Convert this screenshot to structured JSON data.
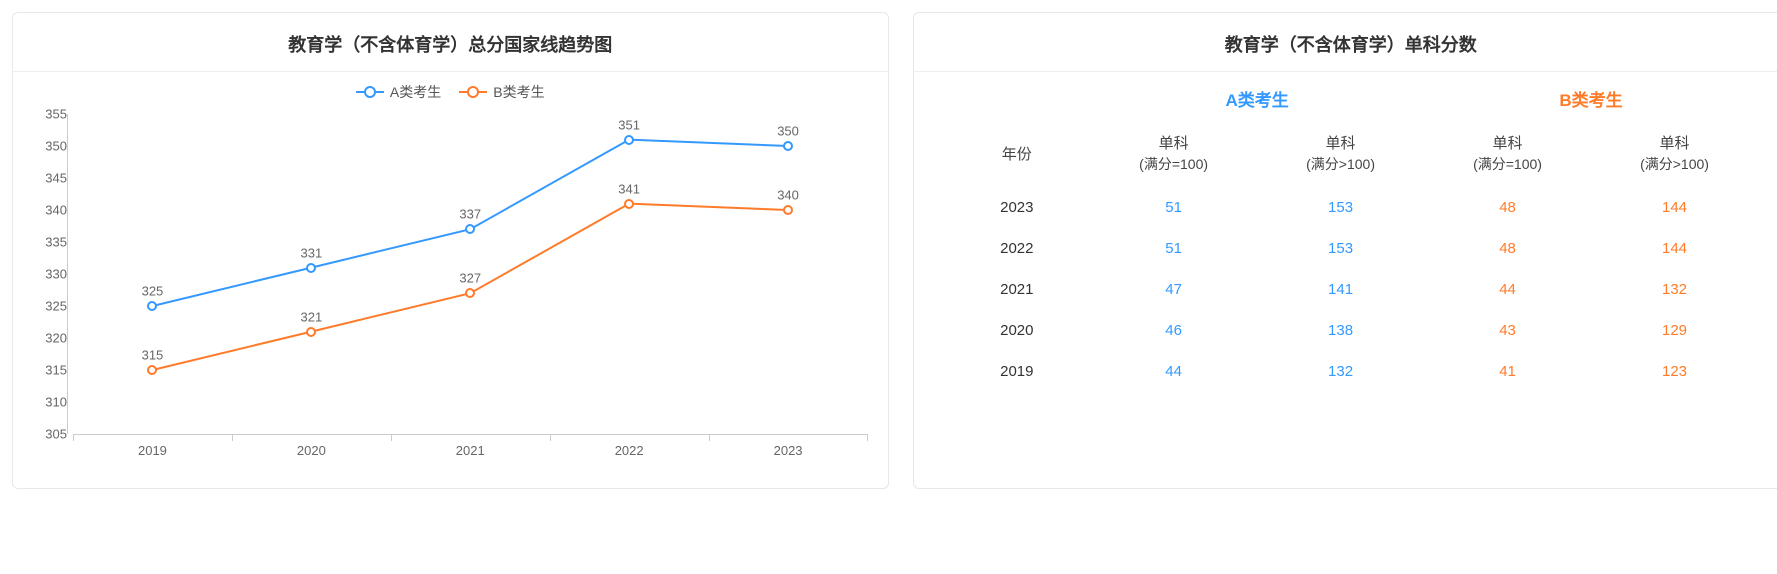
{
  "chart": {
    "title": "教育学（不含体育学）总分国家线趋势图",
    "type": "line",
    "legend": [
      {
        "label": "A类考生",
        "color": "#3399ff"
      },
      {
        "label": "B类考生",
        "color": "#ff7b29"
      }
    ],
    "x_categories": [
      "2019",
      "2020",
      "2021",
      "2022",
      "2023"
    ],
    "y_min": 305,
    "y_max": 355,
    "y_step": 5,
    "series": [
      {
        "name": "A类考生",
        "color": "#3399ff",
        "values": [
          325,
          331,
          337,
          351,
          350
        ]
      },
      {
        "name": "B类考生",
        "color": "#ff7b29",
        "values": [
          315,
          321,
          327,
          341,
          340
        ]
      }
    ],
    "marker_size": 10,
    "marker_border": 2,
    "line_width": 2,
    "label_fontsize": 13,
    "axis_fontsize": 13,
    "axis_color": "#666666",
    "grid_color": "#cccccc",
    "background_color": "#ffffff"
  },
  "table": {
    "title": "教育学（不含体育学）单科分数",
    "groups": [
      {
        "label": "A类考生",
        "color": "#3399ff"
      },
      {
        "label": "B类考生",
        "color": "#ff7b29"
      }
    ],
    "year_header": "年份",
    "sub_headers": [
      {
        "line1": "单科",
        "line2": "(满分=100)"
      },
      {
        "line1": "单科",
        "line2": "(满分>100)"
      },
      {
        "line1": "单科",
        "line2": "(满分=100)"
      },
      {
        "line1": "单科",
        "line2": "(满分>100)"
      }
    ],
    "rows": [
      {
        "year": "2023",
        "a100": "51",
        "a100p": "153",
        "b100": "48",
        "b100p": "144"
      },
      {
        "year": "2022",
        "a100": "51",
        "a100p": "153",
        "b100": "48",
        "b100p": "144"
      },
      {
        "year": "2021",
        "a100": "47",
        "a100p": "141",
        "b100": "44",
        "b100p": "132"
      },
      {
        "year": "2020",
        "a100": "46",
        "a100p": "138",
        "b100": "43",
        "b100p": "129"
      },
      {
        "year": "2019",
        "a100": "44",
        "a100p": "132",
        "b100": "41",
        "b100p": "123"
      }
    ],
    "year_color": "#333333",
    "header_color": "#444444"
  }
}
